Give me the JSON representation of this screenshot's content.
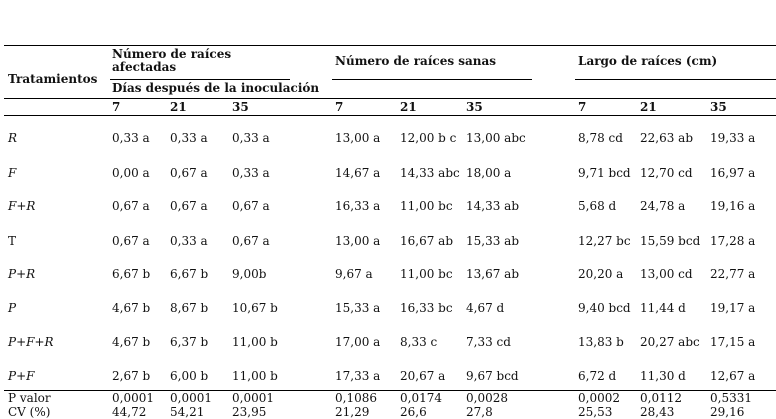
{
  "header": {
    "tratamientos": "Tratamientos",
    "groups": [
      "Número de raíces afectadas",
      "Número de raíces sanas",
      "Largo de raíces (cm)"
    ],
    "dias": "Días después de la inoculación",
    "days": [
      "7",
      "21",
      "35",
      "7",
      "21",
      "35",
      "7",
      "21",
      "35"
    ]
  },
  "table": {
    "rows": [
      {
        "name": "R",
        "values": [
          "0,33 a",
          "0,33 a",
          "0,33 a",
          "13,00 a",
          "12,00 b c",
          "13,00 abc",
          "8,78 cd",
          "22,63 ab",
          "19,33 a"
        ]
      },
      {
        "name": "F",
        "values": [
          "0,00 a",
          "0,67 a",
          "0,33 a",
          "14,67 a",
          "14,33 abc",
          "18,00 a",
          "9,71 bcd",
          "12,70 cd",
          "16,97 a"
        ]
      },
      {
        "name": "F+R",
        "values": [
          "0,67 a",
          "0,67 a",
          "0,67 a",
          "16,33 a",
          "11,00 bc",
          "14,33 ab",
          "5,68 d",
          "24,78 a",
          "19,16 a"
        ]
      },
      {
        "name": "T",
        "values": [
          "0,67 a",
          "0,33 a",
          "0,67 a",
          "13,00 a",
          "16,67 ab",
          "15,33 ab",
          "12,27 bc",
          "15,59 bcd",
          "17,28 a"
        ]
      },
      {
        "name": "P+R",
        "values": [
          "6,67 b",
          "6,67 b",
          "9,00b",
          "9,67 a",
          "11,00 bc",
          "13,67 ab",
          "20,20 a",
          "13,00 cd",
          "22,77 a"
        ]
      },
      {
        "name": "P",
        "values": [
          "4,67 b",
          "8,67 b",
          "10,67 b",
          "15,33 a",
          "16,33 bc",
          "4,67 d",
          "9,40 bcd",
          "11,44 d",
          "19,17 a"
        ]
      },
      {
        "name": "P+F+R",
        "values": [
          "4,67 b",
          "6,37 b",
          "11,00 b",
          "17,00 a",
          "8,33 c",
          "7,33 cd",
          "13,83 b",
          "20,27 abc",
          "17,15 a"
        ]
      },
      {
        "name": "P+F",
        "values": [
          "2,67 b",
          "6,00 b",
          "11,00 b",
          "17,33 a",
          "20,67 a",
          "9,67 bcd",
          "6,72 d",
          "11,30 d",
          "12,67 a"
        ]
      }
    ],
    "stats": [
      {
        "name": "P valor",
        "values": [
          "0,0001",
          "0,0001",
          "0,0001",
          "0,1086",
          "0,0174",
          "0,0028",
          "0,0002",
          "0,0112",
          "0,5331"
        ]
      },
      {
        "name": "CV (%)",
        "values": [
          "44,72",
          "54,21",
          "23,95",
          "21,29",
          "26,6",
          "27,8",
          "25,53",
          "28,43",
          "29,16"
        ]
      }
    ]
  }
}
